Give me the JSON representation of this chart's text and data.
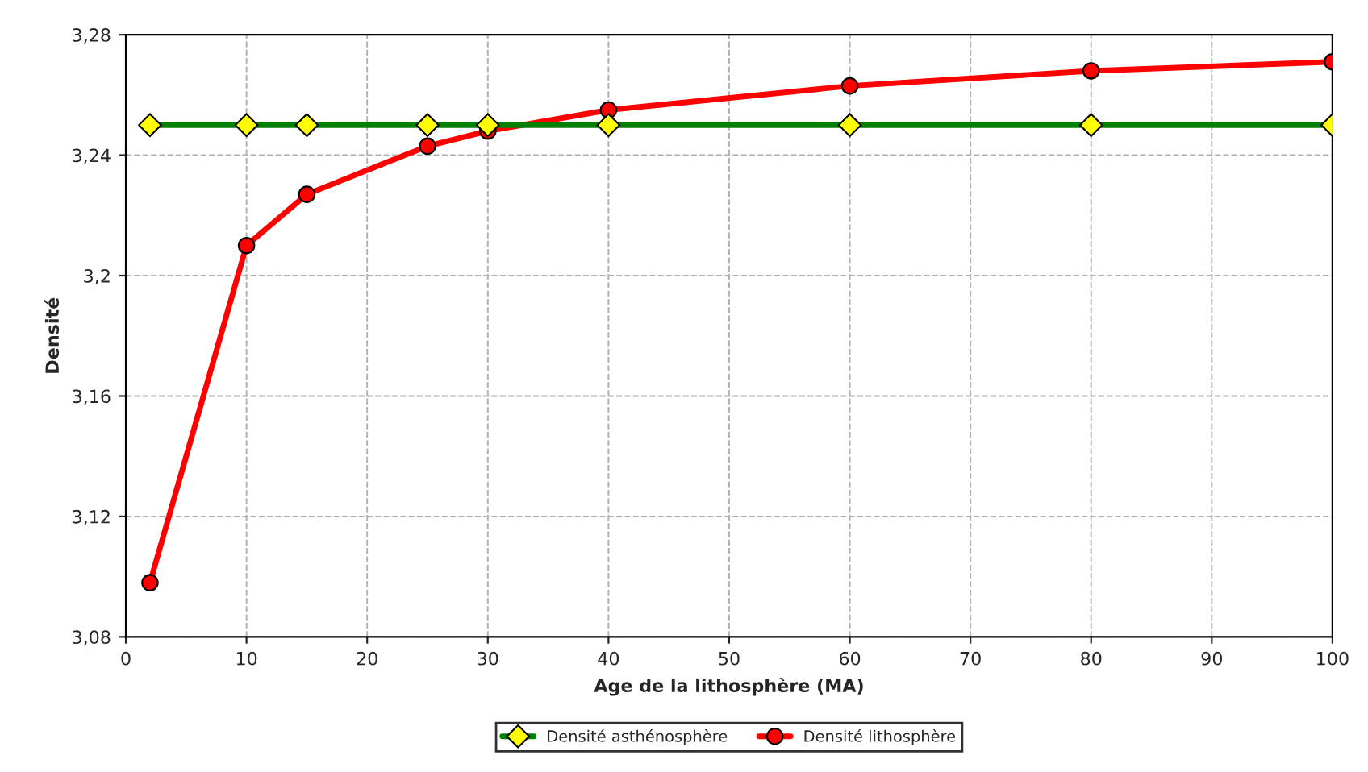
{
  "chart_data": {
    "type": "line",
    "xlabel": "Age de la lithosphère (MA)",
    "ylabel": "Densité",
    "x": [
      2,
      10,
      15,
      25,
      30,
      40,
      60,
      80,
      100
    ],
    "series": [
      {
        "name": "Densité asthénosphère",
        "color": "#008000",
        "marker": "diamond",
        "values": [
          3.25,
          3.25,
          3.25,
          3.25,
          3.25,
          3.25,
          3.25,
          3.25,
          3.25
        ]
      },
      {
        "name": "Densité lithosphère",
        "color": "#ff0000",
        "marker": "circle",
        "values": [
          3.098,
          3.21,
          3.227,
          3.243,
          3.248,
          3.255,
          3.263,
          3.268,
          3.271
        ]
      }
    ],
    "xlim": [
      0,
      100
    ],
    "xticks": [
      0,
      10,
      20,
      30,
      40,
      50,
      60,
      70,
      80,
      90,
      100
    ],
    "ylim": [
      3.08,
      3.28
    ],
    "yticks": [
      {
        "value": 3.08,
        "label": "3,08"
      },
      {
        "value": 3.12,
        "label": "3,12"
      },
      {
        "value": 3.16,
        "label": "3,16"
      },
      {
        "value": 3.2,
        "label": "3,2"
      },
      {
        "value": 3.24,
        "label": "3,24"
      },
      {
        "value": 3.28,
        "label": "3,28"
      }
    ],
    "grid": true,
    "legend": "bottom",
    "line_style": "solid"
  }
}
